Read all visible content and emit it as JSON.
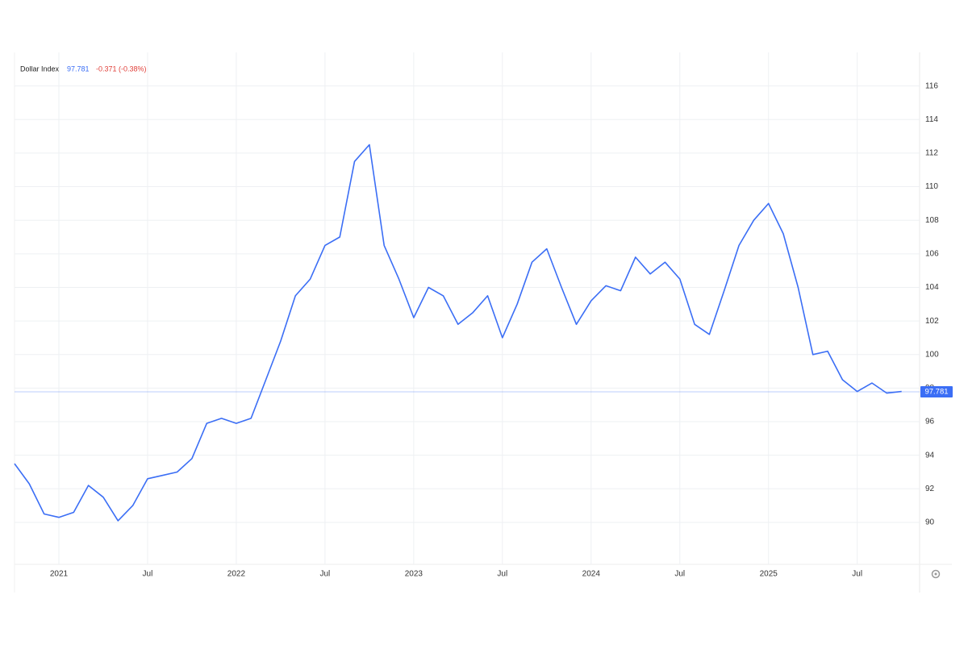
{
  "chart_data": {
    "type": "line",
    "title": "Dollar Index",
    "last_value": 97.781,
    "change_label": "-0.371 (-0.38%)",
    "color": "#3b6ef5",
    "x": [
      "2020-10",
      "2020-11",
      "2020-12",
      "2021-01",
      "2021-02",
      "2021-03",
      "2021-04",
      "2021-05",
      "2021-06",
      "2021-07",
      "2021-08",
      "2021-09",
      "2021-10",
      "2021-11",
      "2021-12",
      "2022-01",
      "2022-02",
      "2022-03",
      "2022-04",
      "2022-05",
      "2022-06",
      "2022-07",
      "2022-08",
      "2022-09",
      "2022-10",
      "2022-11",
      "2022-12",
      "2023-01",
      "2023-02",
      "2023-03",
      "2023-04",
      "2023-05",
      "2023-06",
      "2023-07",
      "2023-08",
      "2023-09",
      "2023-10",
      "2023-11",
      "2023-12",
      "2024-01",
      "2024-02",
      "2024-03",
      "2024-04",
      "2024-05",
      "2024-06",
      "2024-07",
      "2024-08",
      "2024-09",
      "2024-10",
      "2024-11",
      "2024-12",
      "2025-01",
      "2025-02",
      "2025-03",
      "2025-04",
      "2025-05",
      "2025-06",
      "2025-07",
      "2025-08",
      "2025-09",
      "2025-10"
    ],
    "values": [
      93.5,
      92.3,
      90.5,
      90.3,
      90.6,
      92.2,
      91.5,
      90.1,
      91.0,
      92.6,
      92.8,
      93.0,
      93.8,
      95.9,
      96.2,
      95.9,
      96.2,
      98.5,
      100.8,
      103.5,
      104.5,
      106.5,
      107.0,
      111.5,
      112.5,
      106.5,
      104.5,
      102.2,
      104.0,
      103.5,
      101.8,
      102.5,
      103.5,
      101.0,
      103.0,
      105.5,
      106.3,
      104.0,
      101.8,
      103.2,
      104.1,
      103.8,
      105.8,
      104.8,
      105.5,
      104.5,
      101.8,
      101.2,
      103.8,
      106.5,
      108.0,
      109.0,
      107.2,
      104.0,
      100.0,
      100.2,
      98.5,
      97.8,
      98.3,
      97.7,
      97.8
    ],
    "xlim": [
      "2020-10",
      "2025-11"
    ],
    "xticks": [
      {
        "value": "2021-01",
        "label": "2021"
      },
      {
        "value": "2021-07",
        "label": "Jul"
      },
      {
        "value": "2022-01",
        "label": "2022"
      },
      {
        "value": "2022-07",
        "label": "Jul"
      },
      {
        "value": "2023-01",
        "label": "2023"
      },
      {
        "value": "2023-07",
        "label": "Jul"
      },
      {
        "value": "2024-01",
        "label": "2024"
      },
      {
        "value": "2024-07",
        "label": "Jul"
      },
      {
        "value": "2025-01",
        "label": "2025"
      },
      {
        "value": "2025-07",
        "label": "Jul"
      }
    ],
    "ylim": [
      87.5,
      118
    ],
    "yticks": [
      90,
      92,
      94,
      96,
      98,
      100,
      102,
      104,
      106,
      108,
      110,
      112,
      114,
      116
    ],
    "grid": true
  }
}
